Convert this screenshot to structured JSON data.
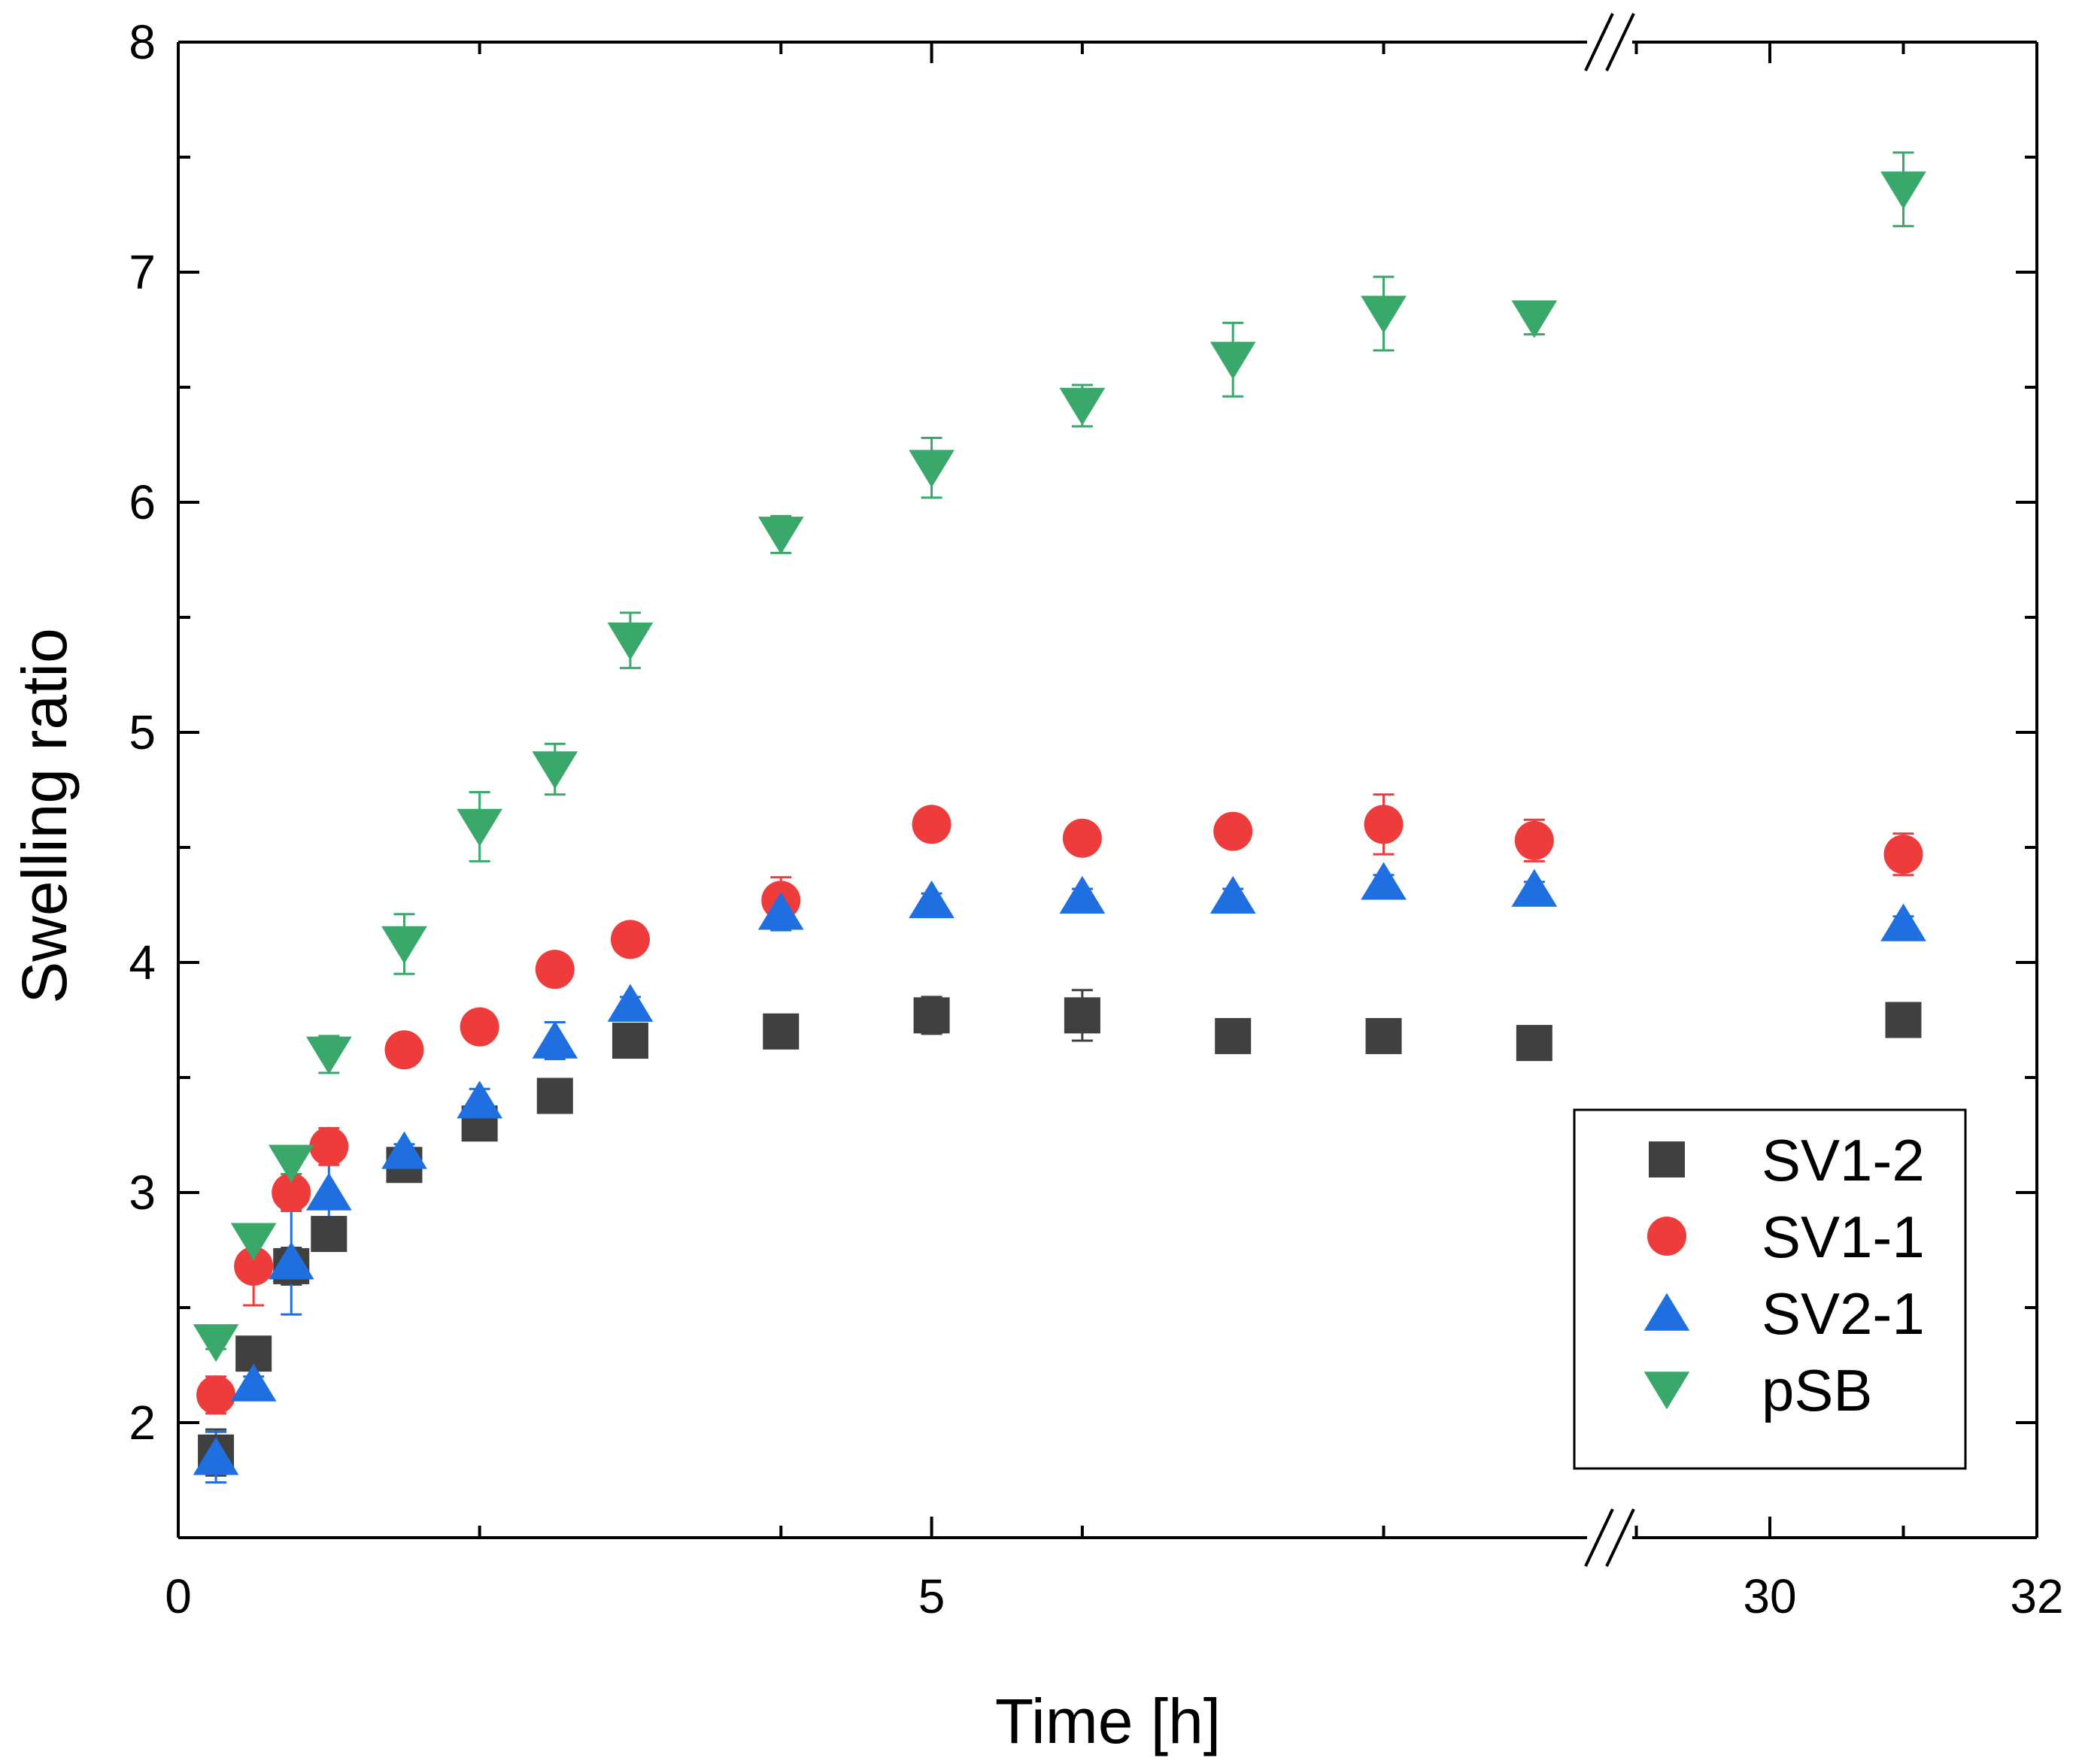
{
  "chart_data": {
    "type": "scatter",
    "title": "",
    "xlabel": "Time [h]",
    "ylabel": "Swelling ratio",
    "ylim": [
      1.5,
      8
    ],
    "grid": false,
    "legend_position": "bottom-right",
    "x_axis_break": {
      "left_segment": [
        0,
        9.5
      ],
      "right_segment": [
        28.8,
        32
      ]
    },
    "x_ticks": [
      0,
      5,
      30,
      32
    ],
    "x_tick_labels": [
      "0",
      "5",
      "30",
      "32"
    ],
    "y_ticks": [
      2,
      3,
      4,
      5,
      6,
      7,
      8
    ],
    "y_tick_labels": [
      "2",
      "3",
      "4",
      "5",
      "6",
      "7",
      "8"
    ],
    "series": [
      {
        "name": "SV1-2",
        "marker": "square",
        "color": "#404040",
        "points": [
          {
            "x": 0.25,
            "y": 1.87,
            "err": 0.1
          },
          {
            "x": 0.5,
            "y": 2.3,
            "err": 0.02
          },
          {
            "x": 0.75,
            "y": 2.68,
            "err": 0.08
          },
          {
            "x": 1,
            "y": 2.82,
            "err": 0.03
          },
          {
            "x": 1.5,
            "y": 3.12,
            "err": 0.03
          },
          {
            "x": 2,
            "y": 3.3,
            "err": 0.03
          },
          {
            "x": 2.5,
            "y": 3.42,
            "err": 0.03
          },
          {
            "x": 3,
            "y": 3.66,
            "err": 0.03
          },
          {
            "x": 4,
            "y": 3.7,
            "err": 0.02
          },
          {
            "x": 5,
            "y": 3.77,
            "err": 0.08
          },
          {
            "x": 6,
            "y": 3.77,
            "err": 0.11
          },
          {
            "x": 7,
            "y": 3.68,
            "err": 0.02
          },
          {
            "x": 8,
            "y": 3.68,
            "err": 0.02
          },
          {
            "x": 9,
            "y": 3.65,
            "err": 0.07
          },
          {
            "x": 31,
            "y": 3.75,
            "err": 0.02
          }
        ]
      },
      {
        "name": "SV1-1",
        "marker": "circle",
        "color": "#ee3b3b",
        "points": [
          {
            "x": 0.25,
            "y": 2.12,
            "err": 0.08
          },
          {
            "x": 0.5,
            "y": 2.68,
            "err": 0.17
          },
          {
            "x": 0.75,
            "y": 3.0,
            "err": 0.08
          },
          {
            "x": 1,
            "y": 3.2,
            "err": 0.08
          },
          {
            "x": 1.5,
            "y": 3.62,
            "err": 0.03
          },
          {
            "x": 2,
            "y": 3.72,
            "err": 0.03
          },
          {
            "x": 2.5,
            "y": 3.97,
            "err": 0.03
          },
          {
            "x": 3,
            "y": 4.1,
            "err": 0.03
          },
          {
            "x": 4,
            "y": 4.27,
            "err": 0.1
          },
          {
            "x": 5,
            "y": 4.6,
            "err": 0.03
          },
          {
            "x": 6,
            "y": 4.54,
            "err": 0.03
          },
          {
            "x": 7,
            "y": 4.57,
            "err": 0.03
          },
          {
            "x": 8,
            "y": 4.6,
            "err": 0.13
          },
          {
            "x": 9,
            "y": 4.53,
            "err": 0.09
          },
          {
            "x": 31,
            "y": 4.47,
            "err": 0.09
          }
        ]
      },
      {
        "name": "SV2-1",
        "marker": "triangle-up",
        "color": "#1f6fe0",
        "points": [
          {
            "x": 0.25,
            "y": 1.85,
            "err": 0.11
          },
          {
            "x": 0.5,
            "y": 2.17,
            "err": 0.03
          },
          {
            "x": 0.75,
            "y": 2.7,
            "err": 0.23
          },
          {
            "x": 1,
            "y": 3.0,
            "err": 0.15
          },
          {
            "x": 1.5,
            "y": 3.18,
            "err": 0.03
          },
          {
            "x": 2,
            "y": 3.4,
            "err": 0.05
          },
          {
            "x": 2.5,
            "y": 3.66,
            "err": 0.08
          },
          {
            "x": 3,
            "y": 3.82,
            "err": 0.03
          },
          {
            "x": 4,
            "y": 4.22,
            "err": 0.08
          },
          {
            "x": 5,
            "y": 4.27,
            "err": 0.03
          },
          {
            "x": 6,
            "y": 4.29,
            "err": 0.03
          },
          {
            "x": 7,
            "y": 4.29,
            "err": 0.03
          },
          {
            "x": 8,
            "y": 4.35,
            "err": 0.03
          },
          {
            "x": 9,
            "y": 4.32,
            "err": 0.03
          },
          {
            "x": 31,
            "y": 4.17,
            "err": 0.03
          }
        ]
      },
      {
        "name": "pSB",
        "marker": "triangle-down",
        "color": "#3aa86b",
        "points": [
          {
            "x": 0.25,
            "y": 2.35,
            "err": 0.03
          },
          {
            "x": 0.5,
            "y": 2.79,
            "err": 0.06
          },
          {
            "x": 0.75,
            "y": 3.13,
            "err": 0.05
          },
          {
            "x": 1,
            "y": 3.6,
            "err": 0.08
          },
          {
            "x": 1.5,
            "y": 4.08,
            "err": 0.13
          },
          {
            "x": 2,
            "y": 4.59,
            "err": 0.15
          },
          {
            "x": 2.5,
            "y": 4.84,
            "err": 0.11
          },
          {
            "x": 3,
            "y": 5.4,
            "err": 0.12
          },
          {
            "x": 4,
            "y": 5.86,
            "err": 0.08
          },
          {
            "x": 5,
            "y": 6.15,
            "err": 0.13
          },
          {
            "x": 6,
            "y": 6.42,
            "err": 0.09
          },
          {
            "x": 7,
            "y": 6.62,
            "err": 0.16
          },
          {
            "x": 8,
            "y": 6.82,
            "err": 0.16
          },
          {
            "x": 9,
            "y": 6.8,
            "err": 0.07
          },
          {
            "x": 31,
            "y": 7.36,
            "err": 0.16
          }
        ]
      }
    ]
  }
}
